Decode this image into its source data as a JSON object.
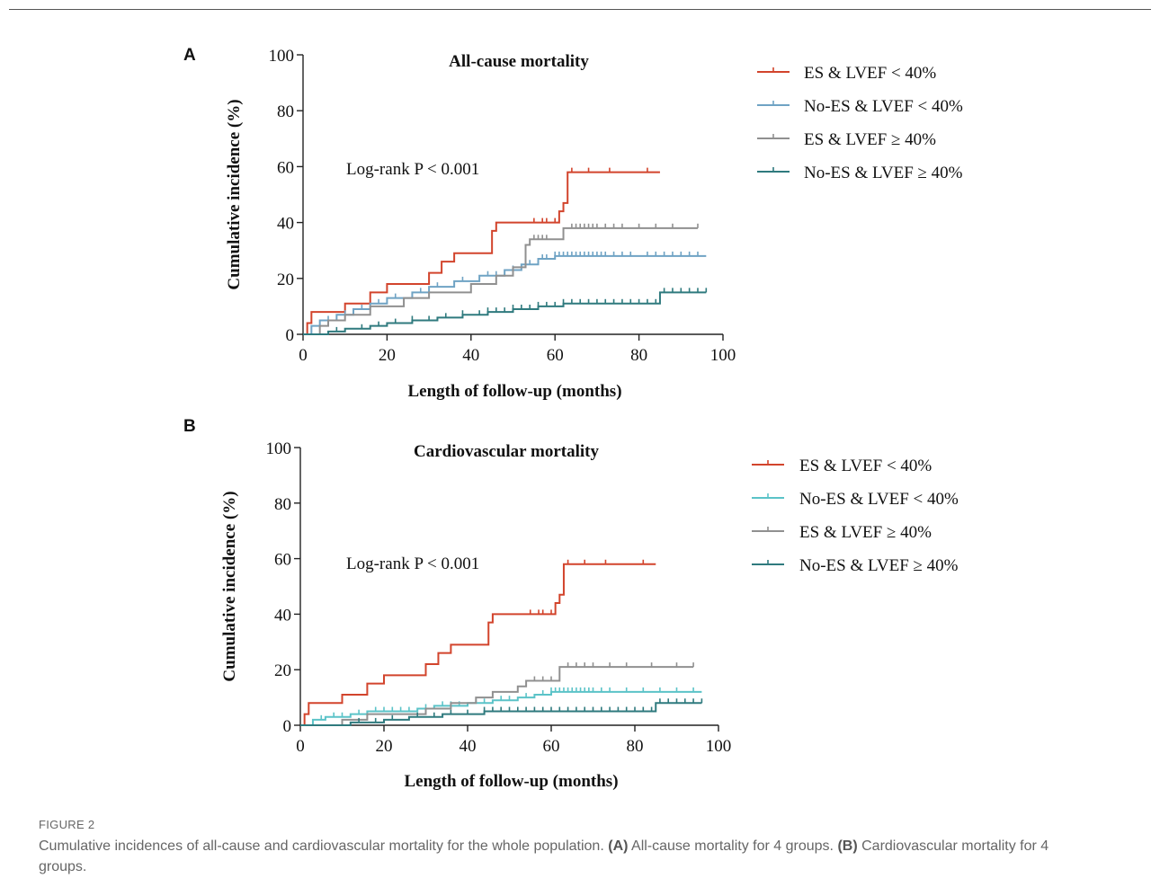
{
  "figure": {
    "label": "FIGURE 2",
    "caption_intro": "Cumulative incidences of all-cause and cardiovascular mortality for the whole population.",
    "caption_a_label": "(A)",
    "caption_a_text": "All-cause mortality for 4 groups.",
    "caption_b_label": "(B)",
    "caption_b_text": "Cardiovascular mortality for 4 groups."
  },
  "colors": {
    "es_low": "#d2442c",
    "noes_low_a": "#6fa3c4",
    "noes_low_b": "#5bc3c8",
    "es_high": "#909090",
    "noes_high": "#2f7a7e"
  },
  "chart_data": [
    {
      "panel_label": "A",
      "type": "line",
      "title": "All-cause mortality",
      "xlabel": "Length of follow-up (months)",
      "ylabel": "Cumulative incidence (%)",
      "xlim": [
        0,
        100
      ],
      "ylim": [
        0,
        100
      ],
      "xticks": [
        0,
        20,
        40,
        60,
        80,
        100
      ],
      "yticks": [
        0,
        20,
        40,
        60,
        80,
        100
      ],
      "annotation": "Log-rank P < 0.001",
      "legend_position": "top-right",
      "series": [
        {
          "name": "ES & LVEF < 40%",
          "color": "#d2442c",
          "steps": [
            [
              0,
              0
            ],
            [
              1,
              4
            ],
            [
              2,
              8
            ],
            [
              8,
              8
            ],
            [
              10,
              11
            ],
            [
              16,
              15
            ],
            [
              20,
              18
            ],
            [
              30,
              22
            ],
            [
              33,
              26
            ],
            [
              36,
              29
            ],
            [
              44,
              29
            ],
            [
              45,
              37
            ],
            [
              46,
              40
            ],
            [
              54,
              40
            ],
            [
              61,
              44
            ],
            [
              62,
              47
            ],
            [
              63,
              58
            ],
            [
              85,
              58
            ]
          ],
          "censor": [
            55,
            57,
            58,
            60,
            64,
            68,
            73,
            82
          ]
        },
        {
          "name": "No-ES & LVEF < 40%",
          "color": "#6fa3c4",
          "steps": [
            [
              0,
              0
            ],
            [
              2,
              3
            ],
            [
              4,
              5
            ],
            [
              8,
              7
            ],
            [
              12,
              9
            ],
            [
              16,
              11
            ],
            [
              20,
              13
            ],
            [
              26,
              15
            ],
            [
              30,
              17
            ],
            [
              36,
              19
            ],
            [
              42,
              21
            ],
            [
              48,
              23
            ],
            [
              52,
              25
            ],
            [
              56,
              27
            ],
            [
              60,
              28
            ],
            [
              96,
              28
            ]
          ],
          "censor": [
            6,
            10,
            14,
            18,
            22,
            28,
            32,
            38,
            44,
            46,
            50,
            54,
            57,
            58,
            60,
            61,
            62,
            63,
            64,
            65,
            66,
            67,
            68,
            69,
            70,
            71,
            72,
            74,
            76,
            78,
            82,
            84,
            86,
            88,
            90,
            92,
            94
          ]
        },
        {
          "name": "ES & LVEF ≥ 40%",
          "color": "#909090",
          "steps": [
            [
              0,
              0
            ],
            [
              4,
              3
            ],
            [
              6,
              5
            ],
            [
              10,
              7
            ],
            [
              16,
              10
            ],
            [
              24,
              13
            ],
            [
              30,
              15
            ],
            [
              40,
              18
            ],
            [
              46,
              21
            ],
            [
              50,
              24
            ],
            [
              53,
              32
            ],
            [
              54,
              34
            ],
            [
              58,
              34
            ],
            [
              62,
              38
            ],
            [
              94,
              38
            ]
          ],
          "censor": [
            55,
            56,
            57,
            58,
            64,
            65,
            66,
            67,
            68,
            69,
            70,
            72,
            74,
            76,
            80,
            84,
            88,
            94
          ]
        },
        {
          "name": "No-ES & LVEF ≥ 40%",
          "color": "#2f7a7e",
          "steps": [
            [
              0,
              0
            ],
            [
              6,
              1
            ],
            [
              10,
              2
            ],
            [
              16,
              3
            ],
            [
              20,
              4
            ],
            [
              26,
              5
            ],
            [
              32,
              6
            ],
            [
              38,
              7
            ],
            [
              44,
              8
            ],
            [
              50,
              9
            ],
            [
              56,
              10
            ],
            [
              62,
              11
            ],
            [
              85,
              11
            ],
            [
              85,
              15
            ],
            [
              96,
              15
            ]
          ],
          "censor": [
            8,
            14,
            18,
            22,
            26,
            30,
            34,
            38,
            42,
            44,
            46,
            48,
            50,
            52,
            54,
            56,
            58,
            60,
            62,
            64,
            66,
            68,
            70,
            72,
            74,
            76,
            78,
            80,
            82,
            84,
            86,
            88,
            90,
            92,
            94,
            96
          ]
        }
      ]
    },
    {
      "panel_label": "B",
      "type": "line",
      "title": "Cardiovascular mortality",
      "xlabel": "Length of follow-up (months)",
      "ylabel": "Cumulative incidence (%)",
      "xlim": [
        0,
        100
      ],
      "ylim": [
        0,
        100
      ],
      "xticks": [
        0,
        20,
        40,
        60,
        80,
        100
      ],
      "yticks": [
        0,
        20,
        40,
        60,
        80,
        100
      ],
      "annotation": "Log-rank P < 0.001",
      "legend_position": "top-right",
      "series": [
        {
          "name": "ES & LVEF < 40%",
          "color": "#d2442c",
          "steps": [
            [
              0,
              0
            ],
            [
              1,
              4
            ],
            [
              2,
              8
            ],
            [
              8,
              8
            ],
            [
              10,
              11
            ],
            [
              16,
              15
            ],
            [
              20,
              18
            ],
            [
              30,
              22
            ],
            [
              33,
              26
            ],
            [
              36,
              29
            ],
            [
              44,
              29
            ],
            [
              45,
              37
            ],
            [
              46,
              40
            ],
            [
              54,
              40
            ],
            [
              61,
              44
            ],
            [
              62,
              47
            ],
            [
              63,
              58
            ],
            [
              85,
              58
            ]
          ],
          "censor": [
            55,
            57,
            58,
            60,
            64,
            68,
            73,
            82
          ]
        },
        {
          "name": "No-ES & LVEF < 40%",
          "color": "#5bc3c8",
          "steps": [
            [
              0,
              0
            ],
            [
              3,
              2
            ],
            [
              6,
              3
            ],
            [
              12,
              4
            ],
            [
              16,
              5
            ],
            [
              28,
              6
            ],
            [
              32,
              7
            ],
            [
              40,
              8
            ],
            [
              46,
              9
            ],
            [
              52,
              10
            ],
            [
              56,
              11
            ],
            [
              60,
              12
            ],
            [
              96,
              12
            ]
          ],
          "censor": [
            5,
            8,
            10,
            14,
            18,
            20,
            22,
            24,
            26,
            30,
            34,
            36,
            38,
            42,
            44,
            48,
            50,
            54,
            58,
            60,
            61,
            62,
            63,
            64,
            65,
            66,
            67,
            68,
            69,
            70,
            72,
            74,
            78,
            82,
            86,
            90,
            94
          ]
        },
        {
          "name": "ES & LVEF ≥ 40%",
          "color": "#909090",
          "steps": [
            [
              0,
              0
            ],
            [
              10,
              2
            ],
            [
              16,
              4
            ],
            [
              30,
              6
            ],
            [
              36,
              8
            ],
            [
              42,
              10
            ],
            [
              46,
              12
            ],
            [
              52,
              14
            ],
            [
              54,
              16
            ],
            [
              60,
              16
            ],
            [
              62,
              21
            ],
            [
              94,
              21
            ]
          ],
          "censor": [
            56,
            58,
            60,
            64,
            66,
            68,
            70,
            74,
            78,
            84,
            90,
            94
          ]
        },
        {
          "name": "No-ES & LVEF ≥ 40%",
          "color": "#2f7a7e",
          "steps": [
            [
              0,
              0
            ],
            [
              12,
              1
            ],
            [
              20,
              2
            ],
            [
              26,
              3
            ],
            [
              34,
              4
            ],
            [
              44,
              5
            ],
            [
              85,
              5
            ],
            [
              85,
              8
            ],
            [
              96,
              8
            ]
          ],
          "censor": [
            14,
            18,
            22,
            28,
            32,
            36,
            40,
            44,
            46,
            48,
            50,
            52,
            54,
            56,
            58,
            60,
            62,
            64,
            66,
            68,
            70,
            72,
            74,
            76,
            78,
            80,
            82,
            84,
            86,
            88,
            90,
            92,
            94,
            96
          ]
        }
      ]
    }
  ]
}
